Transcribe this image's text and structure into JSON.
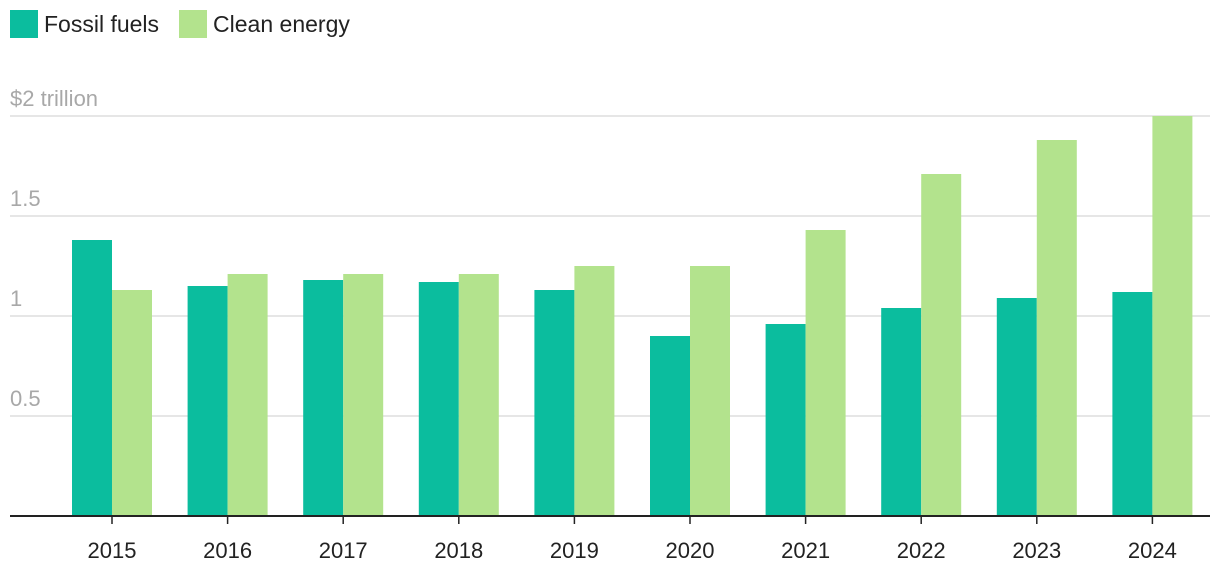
{
  "chart_data": {
    "type": "bar",
    "title": "",
    "xlabel": "",
    "ylabel": "",
    "categories": [
      "2015",
      "2016",
      "2017",
      "2018",
      "2019",
      "2020",
      "2021",
      "2022",
      "2023",
      "2024"
    ],
    "series": [
      {
        "name": "Fossil fuels",
        "color": "#0bbd9e",
        "values": [
          1.38,
          1.15,
          1.18,
          1.17,
          1.13,
          0.9,
          0.96,
          1.04,
          1.09,
          1.12
        ]
      },
      {
        "name": "Clean energy",
        "color": "#b3e38d",
        "values": [
          1.13,
          1.21,
          1.21,
          1.21,
          1.25,
          1.25,
          1.43,
          1.71,
          1.88,
          2.0
        ]
      }
    ],
    "ylim": [
      0,
      2
    ],
    "yticks": [
      {
        "value": 0.5,
        "label": "0.5"
      },
      {
        "value": 1,
        "label": "1"
      },
      {
        "value": 1.5,
        "label": "1.5"
      },
      {
        "value": 2,
        "label": "$2 trillion"
      }
    ],
    "grid": true,
    "legend_position": "top-left"
  }
}
